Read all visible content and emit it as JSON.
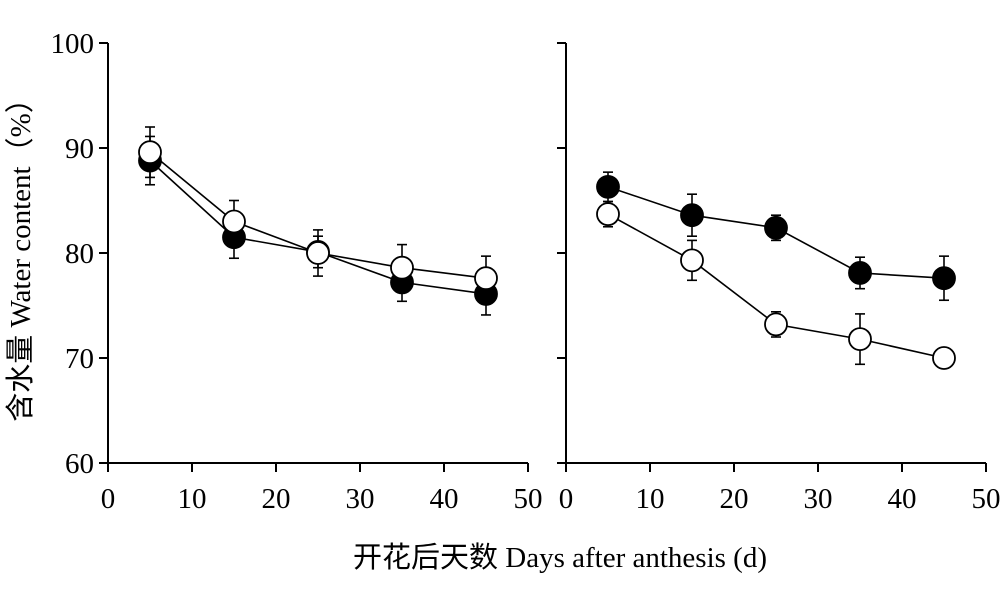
{
  "ylabel": "含水量 Water content（%）",
  "xlabel": "开花后天数 Days after anthesis (d)",
  "chart_data": [
    {
      "type": "line",
      "title": "",
      "xlim": [
        0,
        50
      ],
      "ylim": [
        60,
        100
      ],
      "xticks": [
        0,
        10,
        20,
        30,
        40,
        50
      ],
      "yticks": [
        60,
        70,
        80,
        90,
        100
      ],
      "x": [
        5,
        15,
        25,
        35,
        45
      ],
      "series": [
        {
          "marker": "filled-circle",
          "color": "#000000",
          "values": [
            88.8,
            81.5,
            80.1,
            77.2,
            76.1
          ],
          "errors": [
            2.3,
            2.0,
            1.5,
            1.8,
            2.0
          ]
        },
        {
          "marker": "open-circle",
          "color": "#000000",
          "values": [
            89.6,
            83.0,
            80.0,
            78.6,
            77.6
          ],
          "errors": [
            2.4,
            2.0,
            2.2,
            2.2,
            2.1
          ]
        }
      ]
    },
    {
      "type": "line",
      "title": "",
      "xlim": [
        0,
        50
      ],
      "ylim": [
        60,
        100
      ],
      "xticks": [
        0,
        10,
        20,
        30,
        40,
        50
      ],
      "yticks": [
        60,
        70,
        80,
        90,
        100
      ],
      "x": [
        5,
        15,
        25,
        35,
        45
      ],
      "series": [
        {
          "marker": "filled-circle",
          "color": "#000000",
          "values": [
            86.3,
            83.6,
            82.4,
            78.1,
            77.6
          ],
          "errors": [
            1.4,
            2.0,
            1.2,
            1.5,
            2.1
          ]
        },
        {
          "marker": "open-circle",
          "color": "#000000",
          "values": [
            83.7,
            79.3,
            73.2,
            71.8,
            70.0
          ],
          "errors": [
            1.2,
            1.9,
            1.2,
            2.4,
            0.9
          ]
        }
      ]
    }
  ]
}
